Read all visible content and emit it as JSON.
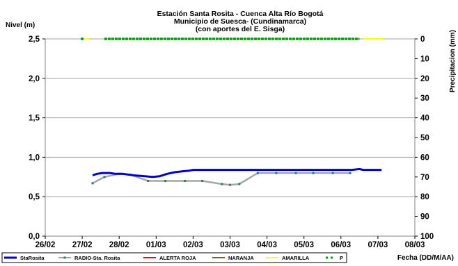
{
  "chart_data": {
    "type": "line",
    "title_lines": [
      "Estación Santa Rosita - Cuenca Alta Río Bogotá",
      "Municipio de Suesca- (Cundinamarca)",
      "(con aportes del  E. Sisga)"
    ],
    "ylabel": "Nivel (m)",
    "y2label": "Precipitacion (mm)",
    "xlabel": "Fecha (DD/M/AA)",
    "x_ticks": [
      "26/02",
      "27/02",
      "28/02",
      "01/03",
      "02/03",
      "03/03",
      "04/03",
      "05/03",
      "06/03",
      "07/03",
      "08/03"
    ],
    "y_ticks": [
      "0,0",
      "0,5",
      "1,0",
      "1,5",
      "2,0",
      "2,5"
    ],
    "y2_ticks": [
      "0",
      "10",
      "20",
      "30",
      "40",
      "50",
      "60",
      "70",
      "80",
      "90",
      "100"
    ],
    "xlim_days": [
      0,
      10
    ],
    "ylim": [
      0,
      2.5
    ],
    "y2lim": [
      0,
      100
    ],
    "y2_inverted": true,
    "grid": true,
    "legend_position": "bottom",
    "series": [
      {
        "name": "StaRosita",
        "color": "#0000cc",
        "points": [
          [
            1.28,
            0.77
          ],
          [
            1.4,
            0.79
          ],
          [
            1.55,
            0.8
          ],
          [
            1.75,
            0.8
          ],
          [
            1.9,
            0.79
          ],
          [
            2.1,
            0.79
          ],
          [
            2.4,
            0.77
          ],
          [
            2.7,
            0.76
          ],
          [
            2.9,
            0.75
          ],
          [
            3.1,
            0.76
          ],
          [
            3.3,
            0.79
          ],
          [
            3.5,
            0.81
          ],
          [
            3.7,
            0.82
          ],
          [
            3.9,
            0.83
          ],
          [
            4.0,
            0.84
          ],
          [
            5.0,
            0.84
          ],
          [
            6.0,
            0.84
          ],
          [
            7.0,
            0.84
          ],
          [
            8.0,
            0.84
          ],
          [
            8.3,
            0.84
          ],
          [
            8.5,
            0.85
          ],
          [
            8.6,
            0.84
          ],
          [
            9.1,
            0.84
          ]
        ]
      },
      {
        "name": "RADIO-Sta. Rosita",
        "color": "#a6a6a6",
        "marker_color": "#2e7d4f",
        "points": [
          [
            1.28,
            0.67
          ],
          [
            1.6,
            0.75
          ],
          [
            2.0,
            0.79
          ],
          [
            2.3,
            0.78
          ],
          [
            2.78,
            0.7
          ],
          [
            3.25,
            0.7
          ],
          [
            3.78,
            0.7
          ],
          [
            4.25,
            0.7
          ],
          [
            4.78,
            0.66
          ],
          [
            5.0,
            0.65
          ],
          [
            5.25,
            0.66
          ],
          [
            5.75,
            0.8
          ],
          [
            6.25,
            0.8
          ],
          [
            6.78,
            0.8
          ],
          [
            7.25,
            0.8
          ],
          [
            7.78,
            0.8
          ],
          [
            8.25,
            0.8
          ]
        ]
      },
      {
        "name": "ALERTA ROJA",
        "color": "#ff0000",
        "points": []
      },
      {
        "name": "NARANJA",
        "color": "#8b5a2b",
        "points": []
      },
      {
        "name": "AMARILLA",
        "color": "#ffff00",
        "points": []
      },
      {
        "name": "P",
        "color": "#00a000",
        "axis": "y2",
        "points": [
          [
            1.0,
            0
          ],
          [
            1.6,
            0
          ],
          [
            8.5,
            0
          ]
        ]
      }
    ]
  }
}
